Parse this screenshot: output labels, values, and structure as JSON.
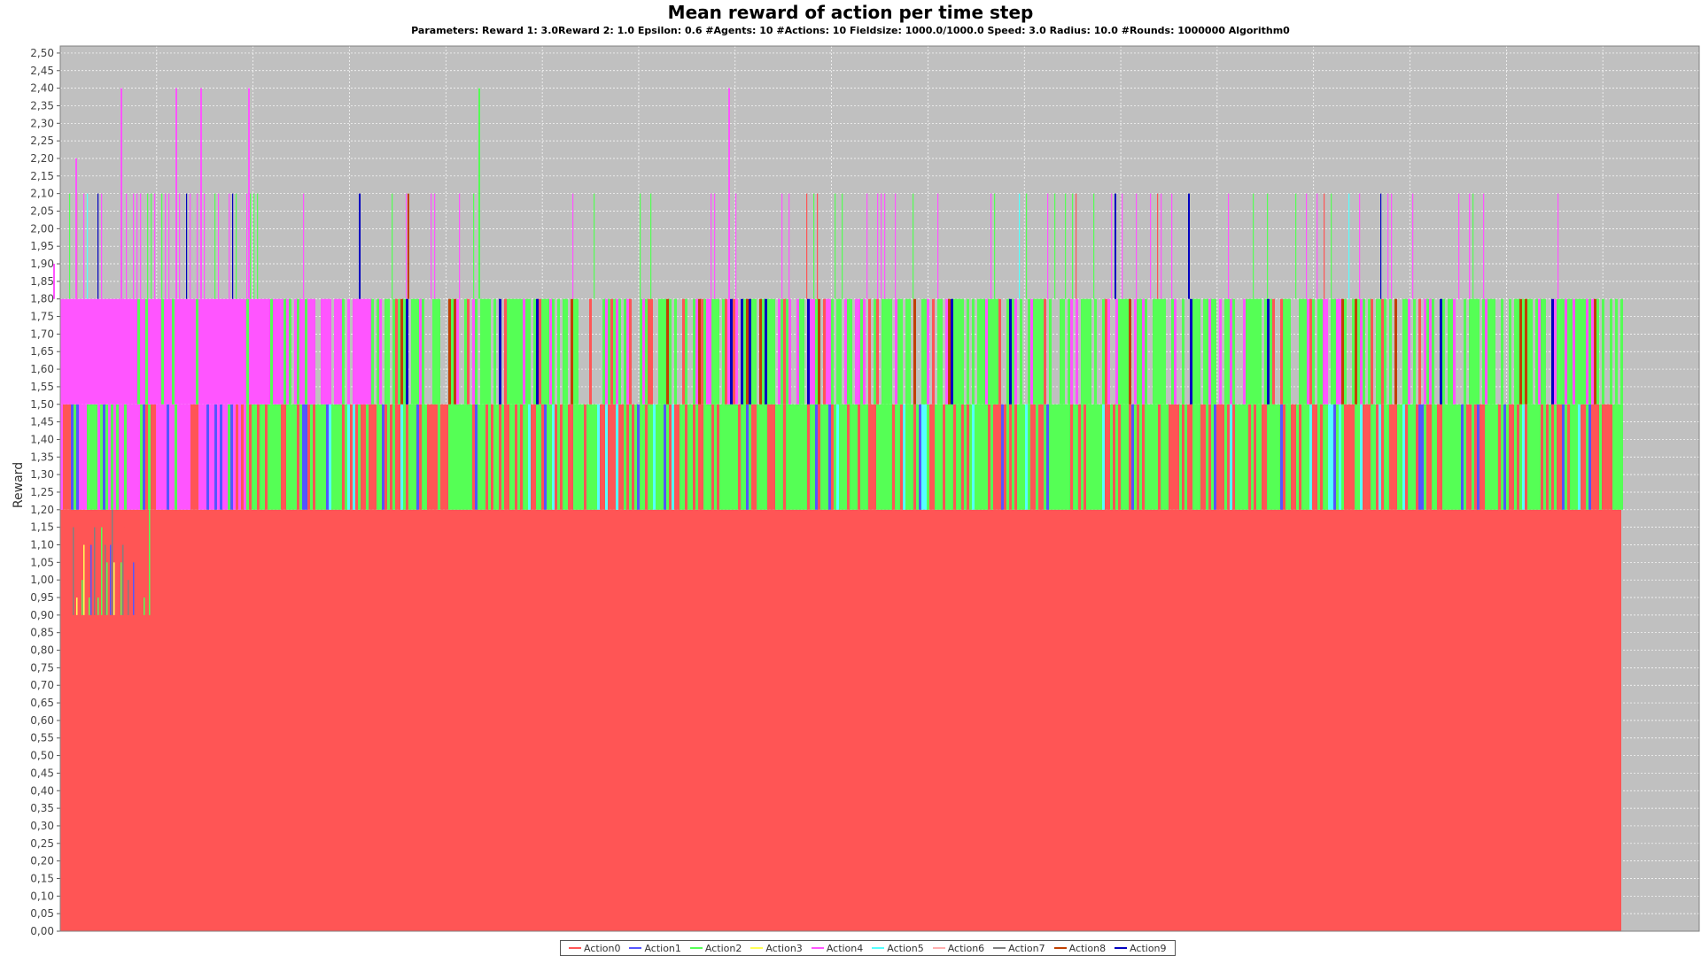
{
  "chart_data": {
    "type": "bar",
    "title": "Mean reward of action per time step",
    "subtitle": "Parameters: Reward 1: 3.0Reward 2: 1.0 Epsilon: 0.6 #Agents: 10 #Actions: 10 Fieldsize: 1000.0/1000.0 Speed: 3.0 Radius: 10.0 #Rounds: 1000000 Algorithm0",
    "xlabel": "",
    "ylabel": "Reward",
    "ylim": [
      0,
      2.52
    ],
    "yticks": [
      "0,00",
      "0,05",
      "0,10",
      "0,15",
      "0,20",
      "0,25",
      "0,30",
      "0,35",
      "0,40",
      "0,45",
      "0,50",
      "0,55",
      "0,60",
      "0,65",
      "0,70",
      "0,75",
      "0,80",
      "0,85",
      "0,90",
      "0,95",
      "1,00",
      "1,05",
      "1,10",
      "1,15",
      "1,20",
      "1,25",
      "1,30",
      "1,35",
      "1,40",
      "1,45",
      "1,50",
      "1,55",
      "1,60",
      "1,65",
      "1,70",
      "1,75",
      "1,80",
      "1,85",
      "1,90",
      "1,95",
      "2,00",
      "2,05",
      "2,10",
      "2,15",
      "2,20",
      "2,25",
      "2,30",
      "2,35",
      "2,40",
      "2,45",
      "2,50"
    ],
    "grid": true,
    "legend_position": "bottom",
    "background_color": "#c0c0c0",
    "series": [
      {
        "name": "Action0",
        "color": "#ff5555",
        "values": [
          1.2,
          1.5,
          1.8,
          2.1
        ]
      },
      {
        "name": "Action1",
        "color": "#5555ff",
        "values": [
          0.9,
          1.3,
          1.6
        ]
      },
      {
        "name": "Action2",
        "color": "#55ff55",
        "values": [
          1.5,
          1.8,
          2.4
        ]
      },
      {
        "name": "Action3",
        "color": "#ffff55",
        "values": [
          0.9,
          1.2
        ]
      },
      {
        "name": "Action4",
        "color": "#ff55ff",
        "values": [
          1.8,
          2.1,
          2.4
        ]
      },
      {
        "name": "Action5",
        "color": "#55ffff",
        "values": [
          1.8,
          2.1
        ]
      },
      {
        "name": "Action6",
        "color": "#ffafaf",
        "values": [
          1.5
        ]
      },
      {
        "name": "Action7",
        "color": "#808080",
        "values": [
          1.8
        ]
      },
      {
        "name": "Action8",
        "color": "#c04000",
        "values": [
          1.8,
          2.1
        ]
      },
      {
        "name": "Action9",
        "color": "#0000c0",
        "values": [
          1.8,
          2.1
        ]
      }
    ]
  }
}
